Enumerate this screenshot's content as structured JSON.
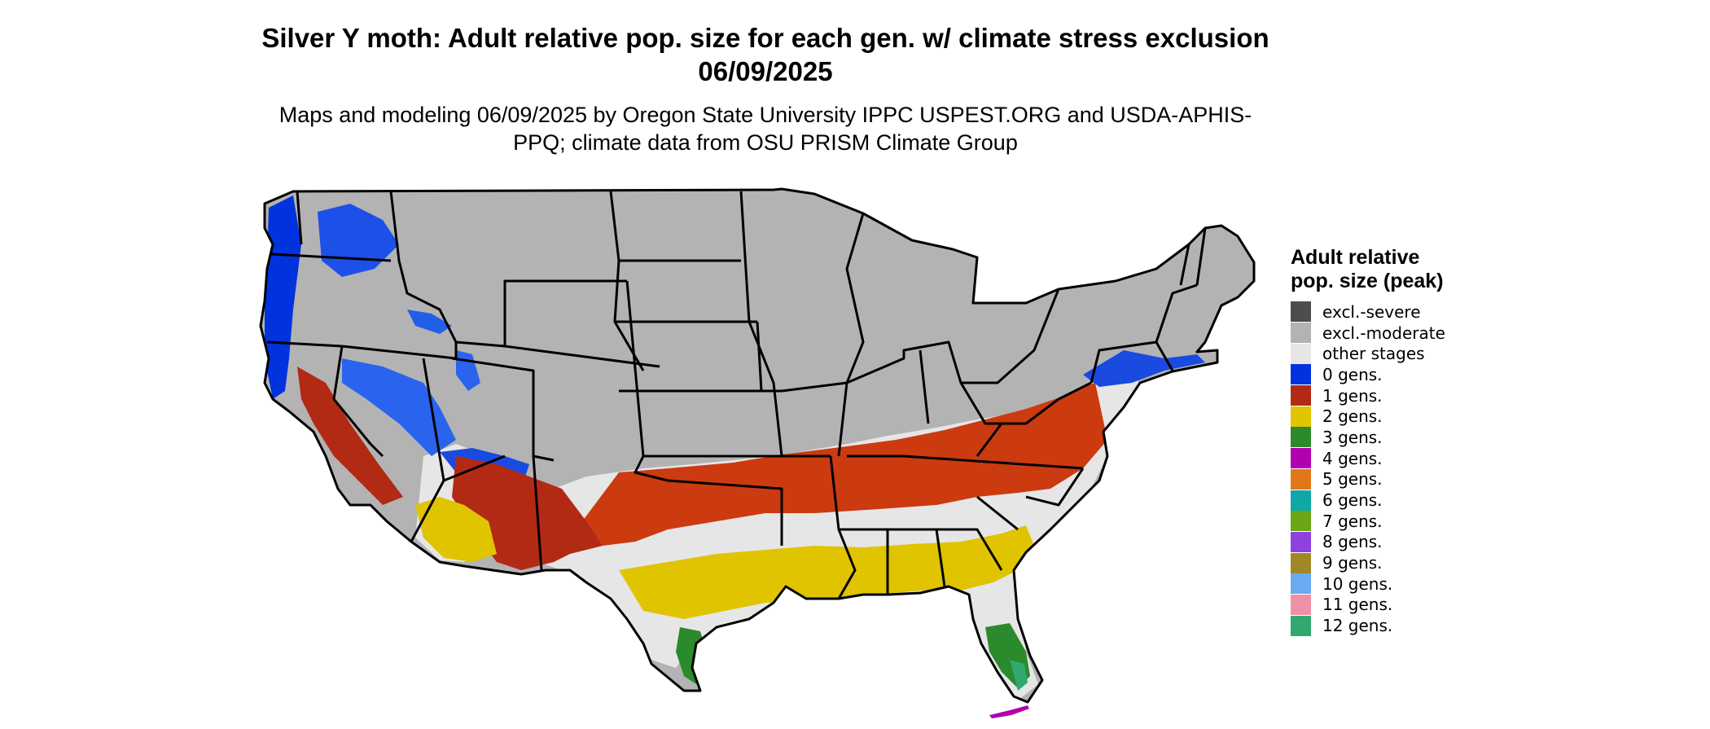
{
  "title": "Silver Y moth: Adult relative pop. size for each gen. w/ climate stress exclusion 06/09/2025",
  "subtitle": "Maps and modeling 06/09/2025 by Oregon State University IPPC USPEST.ORG and USDA-APHIS-PPQ; climate data from OSU PRISM Climate Group",
  "legend": {
    "title": "Adult relative pop. size (peak)",
    "items": [
      {
        "label": "excl.-severe",
        "color": "#4d4d4d"
      },
      {
        "label": "excl.-moderate",
        "color": "#b3b3b3"
      },
      {
        "label": "other stages",
        "color": "#e6e6e6"
      },
      {
        "label": "0 gens.",
        "color": "#0033dd"
      },
      {
        "label": "1 gens.",
        "color": "#b22a14"
      },
      {
        "label": "2 gens.",
        "color": "#e0c400"
      },
      {
        "label": "3 gens.",
        "color": "#2b8a2b"
      },
      {
        "label": "4 gens.",
        "color": "#b000b0"
      },
      {
        "label": "5 gens.",
        "color": "#e07818"
      },
      {
        "label": "6 gens.",
        "color": "#10a7a7"
      },
      {
        "label": "7 gens.",
        "color": "#6aa616"
      },
      {
        "label": "8 gens.",
        "color": "#9040e0"
      },
      {
        "label": "9 gens.",
        "color": "#a08828"
      },
      {
        "label": "10 gens.",
        "color": "#6aaaf0"
      },
      {
        "label": "11 gens.",
        "color": "#f090a8"
      },
      {
        "label": "12 gens.",
        "color": "#30a870"
      }
    ]
  }
}
